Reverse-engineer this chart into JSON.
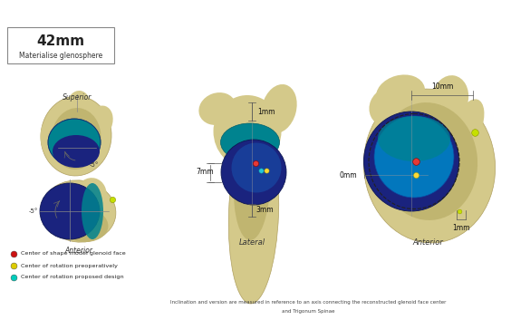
{
  "title_text": "42mm",
  "subtitle_text": "Materialise glenosphere",
  "legend_items": [
    {
      "color": "#cc1111",
      "label": "Center of shape model glenoid face"
    },
    {
      "color": "#ddcc00",
      "label": "Center of rotation preoperatively"
    },
    {
      "color": "#00ccbb",
      "label": "Center of rotation proposed design"
    }
  ],
  "label_superior": "Superior",
  "label_anterior_left": "Anterior",
  "label_lateral": "Lateral",
  "label_anterior_right": "Anterior",
  "meas_center_top": "1mm",
  "meas_center_left": "7mm",
  "meas_center_bot": "3mm",
  "meas_right_top": "10mm",
  "meas_right_mid": "0mm",
  "meas_right_bot": "1mm",
  "angle_top": "-5°",
  "angle_bot": "-5°",
  "footnote1": "Inclination and version are measured in reference to an axis connecting the reconstructed glenoid face center",
  "footnote2": "and Trigonum Spinae",
  "bone_color": "#d4c98a",
  "bone_edge": "#b0a060",
  "bone_shadow": "#c0b570",
  "sphere_dark_blue": "#1a237e",
  "sphere_mid_blue": "#1565c0",
  "sphere_teal": "#00838f",
  "sphere_light_blue": "#0277bd",
  "dot_red": "#e53935",
  "dot_yellow": "#fdd835",
  "dot_teal": "#26c6da",
  "dot_yellow_green": "#c6e000"
}
